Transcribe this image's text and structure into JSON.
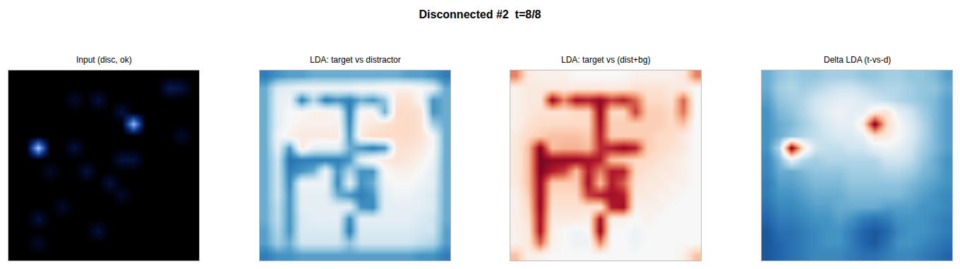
{
  "title": "Disconnected #2  t=8/8",
  "chart_data": [
    {
      "type": "heatmap",
      "title": "Input (disc, ok)",
      "color": "black_blue",
      "zlim": [
        0,
        1
      ],
      "xlim": [
        -0.5,
        15.5
      ],
      "ylim": [
        15.5,
        -0.5
      ],
      "tick_labels": false,
      "z": [
        [
          0,
          0,
          0,
          0,
          0,
          0,
          0,
          0,
          0,
          0,
          0,
          0,
          0,
          0,
          0,
          0
        ],
        [
          0,
          0,
          0,
          0,
          0,
          0,
          0,
          0,
          0,
          0,
          0,
          0,
          0,
          0.2,
          0.15,
          0
        ],
        [
          0,
          0,
          0,
          0,
          0,
          0.1,
          0,
          0.15,
          0,
          0,
          0,
          0,
          0,
          0,
          0,
          0
        ],
        [
          0,
          0,
          0,
          0,
          0,
          0,
          0,
          0,
          0,
          0.15,
          0,
          0,
          0,
          0,
          0,
          0
        ],
        [
          0,
          0,
          0,
          0,
          0,
          0,
          0,
          0,
          0,
          0,
          0.8,
          0,
          0,
          0,
          0,
          0
        ],
        [
          0,
          0,
          0,
          0,
          0,
          0,
          0,
          0,
          0,
          0,
          0,
          0,
          0,
          0,
          0.1,
          0
        ],
        [
          0,
          0,
          0.85,
          0,
          0,
          0.15,
          0,
          0,
          0,
          0,
          0,
          0,
          0,
          0,
          0,
          0
        ],
        [
          0,
          0,
          0,
          0,
          0,
          0,
          0,
          0,
          0,
          0.15,
          0.15,
          0,
          0,
          0,
          0,
          0
        ],
        [
          0,
          0,
          0,
          0.1,
          0,
          0,
          0.15,
          0,
          0,
          0,
          0,
          0,
          0,
          0,
          0,
          0
        ],
        [
          0,
          0,
          0,
          0,
          0,
          0,
          0,
          0,
          0.15,
          0,
          0,
          0,
          0,
          0,
          0,
          0
        ],
        [
          0,
          0,
          0,
          0,
          0,
          0,
          0,
          0,
          0,
          0.1,
          0,
          0,
          0,
          0,
          0,
          0
        ],
        [
          0,
          0,
          0,
          0,
          0.1,
          0,
          0,
          0,
          0,
          0,
          0,
          0,
          0,
          0,
          0,
          0
        ],
        [
          0,
          0,
          0.15,
          0,
          0,
          0,
          0,
          0,
          0,
          0,
          0,
          0,
          0,
          0,
          0,
          0
        ],
        [
          0,
          0,
          0,
          0,
          0,
          0,
          0,
          0.15,
          0,
          0,
          0,
          0,
          0,
          0,
          0,
          0
        ],
        [
          0,
          0,
          0.1,
          0,
          0,
          0,
          0,
          0,
          0,
          0,
          0,
          0,
          0,
          0,
          0,
          0
        ],
        [
          0,
          0,
          0,
          0,
          0,
          0,
          0,
          0,
          0,
          0,
          0,
          0,
          0,
          0,
          0,
          0
        ]
      ]
    },
    {
      "type": "heatmap",
      "title": "LDA: target vs distractor",
      "color": "RdBu_r",
      "zlim": [
        -1,
        1
      ],
      "xlim": [
        -0.5,
        15.5
      ],
      "ylim": [
        15.5,
        -0.5
      ],
      "tick_labels": false,
      "z": [
        [
          -0.7,
          -0.6,
          -0.55,
          -0.55,
          -0.5,
          -0.5,
          -0.5,
          -0.5,
          -0.5,
          -0.5,
          -0.5,
          -0.5,
          -0.55,
          -0.55,
          -0.6,
          -0.7
        ],
        [
          -0.5,
          -0.15,
          -0.1,
          -0.05,
          -0.05,
          -0.05,
          -0.05,
          -0.05,
          0.0,
          0.0,
          0.05,
          0.05,
          0.05,
          0.0,
          -0.1,
          -0.5
        ],
        [
          -0.5,
          -0.1,
          -0.05,
          -0.7,
          -0.3,
          -0.7,
          -0.6,
          -0.7,
          -0.5,
          -0.6,
          -0.4,
          0.15,
          0.15,
          0.0,
          -0.6,
          -0.5
        ],
        [
          -0.5,
          -0.1,
          0.0,
          0.0,
          0.05,
          0.05,
          0.0,
          -0.7,
          0.0,
          0.05,
          -0.5,
          0.2,
          0.2,
          0.15,
          -0.6,
          -0.5
        ],
        [
          -0.5,
          -0.1,
          0.0,
          0.05,
          0.05,
          0.05,
          0.05,
          -0.65,
          0.05,
          0.1,
          0.15,
          0.2,
          0.2,
          0.15,
          -0.35,
          -0.5
        ],
        [
          -0.5,
          -0.05,
          0.05,
          0.1,
          0.1,
          0.1,
          0.1,
          -0.6,
          0.1,
          0.2,
          0.2,
          0.2,
          0.2,
          0.15,
          0.0,
          -0.5
        ],
        [
          -0.5,
          -0.1,
          -0.6,
          0.1,
          -0.1,
          -0.1,
          -0.1,
          -0.5,
          -0.6,
          -0.7,
          -0.6,
          0.15,
          0.15,
          0.1,
          0.0,
          -0.5
        ],
        [
          -0.5,
          -0.2,
          -0.75,
          -0.7,
          -0.7,
          -0.7,
          -0.7,
          -0.6,
          -0.1,
          0.05,
          0.1,
          0.15,
          0.1,
          0.05,
          -0.05,
          -0.5
        ],
        [
          -0.5,
          -0.2,
          -0.7,
          -0.6,
          -0.5,
          -0.05,
          -0.6,
          -0.3,
          -0.6,
          -0.6,
          0.0,
          0.05,
          0.05,
          0.0,
          -0.1,
          -0.5
        ],
        [
          -0.5,
          -0.2,
          -0.65,
          -0.05,
          -0.05,
          -0.05,
          -0.65,
          -0.1,
          -0.6,
          -0.5,
          -0.05,
          0.0,
          0.0,
          -0.05,
          -0.1,
          -0.5
        ],
        [
          -0.5,
          -0.2,
          -0.6,
          -0.1,
          -0.1,
          -0.1,
          -0.5,
          -0.6,
          -0.7,
          -0.6,
          -0.1,
          -0.05,
          -0.05,
          -0.1,
          -0.15,
          -0.5
        ],
        [
          -0.5,
          -0.25,
          -0.6,
          -0.1,
          -0.1,
          -0.1,
          -0.1,
          -0.1,
          -0.6,
          -0.65,
          -0.1,
          -0.1,
          -0.1,
          -0.1,
          -0.15,
          -0.5
        ],
        [
          -0.5,
          -0.25,
          -0.6,
          -0.15,
          -0.1,
          -0.1,
          -0.1,
          -0.65,
          -0.1,
          -0.1,
          -0.1,
          -0.1,
          -0.1,
          -0.15,
          -0.2,
          -0.5
        ],
        [
          -0.55,
          -0.3,
          -0.6,
          -0.15,
          -0.15,
          -0.15,
          -0.15,
          -0.7,
          -0.15,
          -0.15,
          -0.15,
          -0.15,
          -0.15,
          -0.2,
          -0.2,
          -0.55
        ],
        [
          -0.55,
          -0.35,
          -0.5,
          -0.2,
          -0.2,
          -0.2,
          -0.2,
          -0.4,
          -0.2,
          -0.2,
          -0.2,
          -0.2,
          -0.2,
          -0.25,
          -0.3,
          -0.55
        ],
        [
          -0.7,
          -0.6,
          -0.6,
          -0.55,
          -0.55,
          -0.55,
          -0.55,
          -0.55,
          -0.55,
          -0.55,
          -0.55,
          -0.55,
          -0.55,
          -0.6,
          -0.6,
          -0.7
        ]
      ]
    },
    {
      "type": "heatmap",
      "title": "LDA: target vs (dist+bg)",
      "color": "RdBu_r",
      "zlim": [
        -1,
        1
      ],
      "xlim": [
        -0.5,
        15.5
      ],
      "ylim": [
        15.5,
        -0.5
      ],
      "tick_labels": false,
      "z": [
        [
          0.5,
          0.1,
          0.05,
          0.05,
          0.05,
          0.0,
          0.0,
          0.0,
          0.0,
          0.0,
          0.05,
          0.05,
          0.05,
          0.05,
          0.1,
          0.5
        ],
        [
          0.05,
          0.1,
          0.1,
          0.1,
          0.1,
          0.1,
          0.1,
          0.1,
          0.1,
          0.1,
          0.15,
          0.15,
          0.15,
          0.1,
          0.1,
          0.0
        ],
        [
          0.05,
          0.1,
          0.1,
          0.9,
          0.5,
          0.85,
          0.8,
          0.9,
          0.7,
          0.8,
          0.6,
          0.2,
          0.2,
          0.15,
          0.6,
          0.0
        ],
        [
          0.05,
          0.1,
          0.15,
          0.15,
          0.15,
          0.2,
          0.2,
          0.9,
          0.2,
          0.2,
          0.7,
          0.25,
          0.25,
          0.2,
          0.55,
          0.0
        ],
        [
          0.05,
          0.15,
          0.2,
          0.2,
          0.2,
          0.2,
          0.2,
          0.85,
          0.25,
          0.25,
          0.25,
          0.25,
          0.25,
          0.2,
          0.3,
          0.0
        ],
        [
          0.1,
          0.2,
          0.25,
          0.3,
          0.3,
          0.3,
          0.25,
          0.8,
          0.25,
          0.25,
          0.25,
          0.25,
          0.2,
          0.2,
          0.1,
          0.0
        ],
        [
          0.1,
          0.3,
          0.95,
          0.3,
          0.35,
          0.35,
          0.3,
          0.75,
          0.8,
          0.9,
          0.8,
          0.25,
          0.2,
          0.15,
          0.1,
          0.0
        ],
        [
          0.1,
          0.3,
          0.95,
          0.9,
          0.9,
          0.9,
          0.85,
          0.8,
          0.3,
          0.25,
          0.2,
          0.2,
          0.15,
          0.1,
          0.05,
          0.0
        ],
        [
          0.1,
          0.3,
          0.95,
          0.8,
          0.7,
          0.3,
          0.8,
          0.5,
          0.8,
          0.8,
          0.2,
          0.15,
          0.1,
          0.1,
          0.05,
          0.0
        ],
        [
          0.1,
          0.3,
          0.9,
          0.25,
          0.25,
          0.25,
          0.85,
          0.3,
          0.8,
          0.6,
          0.15,
          0.1,
          0.1,
          0.05,
          0.05,
          0.0
        ],
        [
          0.05,
          0.25,
          0.9,
          0.2,
          0.2,
          0.2,
          0.7,
          0.8,
          0.85,
          0.8,
          0.1,
          0.1,
          0.05,
          0.05,
          0.0,
          0.0
        ],
        [
          0.05,
          0.2,
          0.9,
          0.15,
          0.15,
          0.15,
          0.15,
          0.1,
          0.8,
          0.85,
          0.05,
          0.05,
          0.05,
          0.0,
          0.0,
          0.0
        ],
        [
          0.05,
          0.15,
          0.85,
          0.1,
          0.1,
          0.1,
          0.05,
          0.85,
          0.05,
          0.05,
          0.0,
          0.05,
          0.0,
          0.0,
          0.0,
          0.0
        ],
        [
          0.05,
          0.1,
          0.85,
          0.05,
          0.0,
          -0.05,
          0.0,
          0.9,
          0.0,
          0.0,
          -0.05,
          0.0,
          0.0,
          0.0,
          0.0,
          0.0
        ],
        [
          0.05,
          0.1,
          0.6,
          0.05,
          0.0,
          -0.05,
          -0.05,
          0.5,
          0.0,
          0.0,
          -0.05,
          0.0,
          0.0,
          0.0,
          0.0,
          0.0
        ],
        [
          0.3,
          0.05,
          0.05,
          0.0,
          0.0,
          0.0,
          0.0,
          0.0,
          0.0,
          0.0,
          0.0,
          0.0,
          0.0,
          0.0,
          0.05,
          0.3
        ]
      ]
    },
    {
      "type": "heatmap",
      "title": "Delta LDA (t-vs-d)",
      "color": "RdBu_r",
      "zlim": [
        -1,
        1
      ],
      "xlim": [
        -0.5,
        15.5
      ],
      "ylim": [
        15.5,
        -0.5
      ],
      "tick_labels": false,
      "z": [
        [
          -0.5,
          -0.4,
          -0.35,
          -0.4,
          -0.4,
          -0.35,
          -0.35,
          -0.35,
          -0.4,
          -0.4,
          -0.35,
          -0.35,
          -0.4,
          -0.4,
          -0.45,
          -0.55
        ],
        [
          -0.5,
          -0.35,
          -0.3,
          -0.35,
          -0.3,
          -0.25,
          -0.2,
          -0.2,
          -0.25,
          -0.3,
          -0.3,
          -0.3,
          -0.35,
          -0.4,
          -0.4,
          -0.5
        ],
        [
          -0.55,
          -0.4,
          -0.35,
          -0.3,
          -0.2,
          -0.15,
          -0.1,
          -0.1,
          -0.15,
          -0.2,
          -0.25,
          -0.3,
          -0.35,
          -0.4,
          -0.45,
          -0.55
        ],
        [
          -0.6,
          -0.45,
          -0.4,
          -0.3,
          -0.2,
          -0.1,
          -0.05,
          -0.1,
          -0.1,
          0.1,
          0.15,
          -0.1,
          -0.2,
          -0.35,
          -0.45,
          -0.55
        ],
        [
          -0.6,
          -0.5,
          -0.45,
          -0.35,
          -0.25,
          -0.15,
          -0.1,
          -0.1,
          0.1,
          0.95,
          0.2,
          0.0,
          -0.15,
          -0.3,
          -0.45,
          -0.55
        ],
        [
          -0.6,
          -0.5,
          -0.4,
          -0.3,
          -0.25,
          -0.2,
          -0.15,
          -0.15,
          -0.1,
          0.15,
          0.1,
          0.0,
          -0.15,
          -0.3,
          -0.45,
          -0.55
        ],
        [
          -0.6,
          -0.3,
          0.95,
          0.15,
          -0.2,
          -0.25,
          -0.25,
          -0.2,
          -0.2,
          -0.1,
          -0.05,
          -0.1,
          -0.2,
          -0.35,
          -0.45,
          -0.55
        ],
        [
          -0.65,
          -0.45,
          -0.1,
          -0.3,
          -0.35,
          -0.3,
          -0.3,
          -0.3,
          -0.3,
          -0.3,
          -0.2,
          -0.2,
          -0.25,
          -0.4,
          -0.5,
          -0.6
        ],
        [
          -0.65,
          -0.5,
          -0.5,
          -0.45,
          -0.4,
          -0.4,
          -0.4,
          -0.35,
          -0.35,
          -0.35,
          -0.3,
          -0.3,
          -0.35,
          -0.45,
          -0.5,
          -0.6
        ],
        [
          -0.7,
          -0.55,
          -0.55,
          -0.5,
          -0.45,
          -0.45,
          -0.45,
          -0.4,
          -0.4,
          -0.4,
          -0.4,
          -0.4,
          -0.45,
          -0.5,
          -0.55,
          -0.6
        ],
        [
          -0.7,
          -0.6,
          -0.6,
          -0.55,
          -0.5,
          -0.5,
          -0.5,
          -0.45,
          -0.45,
          -0.45,
          -0.45,
          -0.45,
          -0.5,
          -0.55,
          -0.6,
          -0.65
        ],
        [
          -0.75,
          -0.65,
          -0.65,
          -0.6,
          -0.55,
          -0.55,
          -0.5,
          -0.5,
          -0.5,
          -0.5,
          -0.55,
          -0.55,
          -0.55,
          -0.6,
          -0.6,
          -0.65
        ],
        [
          -0.8,
          -0.7,
          -0.7,
          -0.65,
          -0.6,
          -0.6,
          -0.55,
          -0.6,
          -0.7,
          -0.75,
          -0.7,
          -0.6,
          -0.6,
          -0.6,
          -0.65,
          -0.7
        ],
        [
          -0.85,
          -0.75,
          -0.75,
          -0.7,
          -0.65,
          -0.6,
          -0.6,
          -0.7,
          -0.8,
          -0.85,
          -0.8,
          -0.65,
          -0.6,
          -0.6,
          -0.65,
          -0.7
        ],
        [
          -0.85,
          -0.8,
          -0.75,
          -0.7,
          -0.65,
          -0.6,
          -0.6,
          -0.7,
          -0.8,
          -0.85,
          -0.75,
          -0.6,
          -0.6,
          -0.65,
          -0.7,
          -0.75
        ],
        [
          -0.85,
          -0.8,
          -0.75,
          -0.7,
          -0.65,
          -0.65,
          -0.65,
          -0.7,
          -0.75,
          -0.75,
          -0.7,
          -0.65,
          -0.65,
          -0.7,
          -0.75,
          -0.8
        ]
      ]
    }
  ]
}
